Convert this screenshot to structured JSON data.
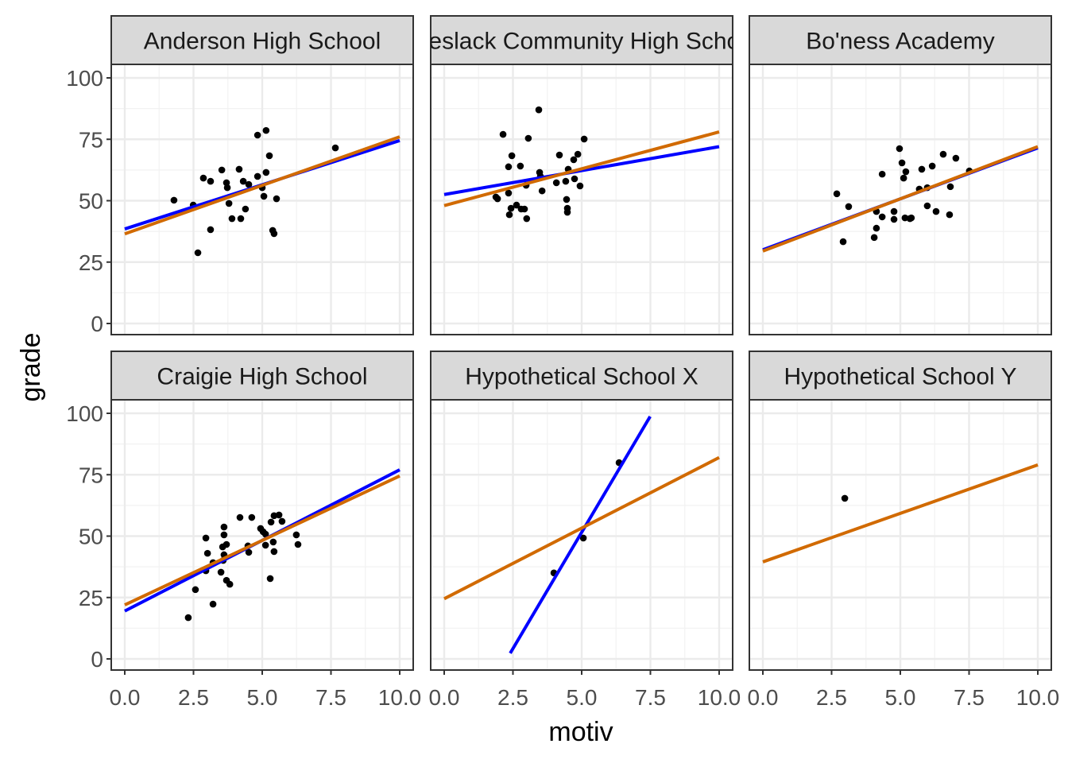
{
  "chart_data": {
    "type": "scatter",
    "layout": "facet grid, 2 rows x 3 columns, shared axes",
    "xlabel": "motiv",
    "ylabel": "grade",
    "xlim": [
      0,
      10
    ],
    "ylim": [
      0,
      100
    ],
    "x_ticks": [
      "0.0",
      "2.5",
      "5.0",
      "7.5",
      "10.0"
    ],
    "y_ticks": [
      "0",
      "25",
      "50",
      "75",
      "100"
    ],
    "grid": true,
    "colors": {
      "points": "#000000",
      "blue_line": "#0000ff",
      "orange_line": "#d16a00",
      "strip": "#d9d9d9",
      "border": "#333333"
    },
    "facets": [
      {
        "title": "Anderson High School",
        "points": [
          [
            1.79,
            50.2
          ],
          [
            2.49,
            48.2
          ],
          [
            2.66,
            28.8
          ],
          [
            2.86,
            59.2
          ],
          [
            3.12,
            57.9
          ],
          [
            3.12,
            38.2
          ],
          [
            3.53,
            62.5
          ],
          [
            3.7,
            57.3
          ],
          [
            3.73,
            55.3
          ],
          [
            3.79,
            48.9
          ],
          [
            3.9,
            42.7
          ],
          [
            4.22,
            42.7
          ],
          [
            4.16,
            62.8
          ],
          [
            4.31,
            57.9
          ],
          [
            4.39,
            46.6
          ],
          [
            4.51,
            56.6
          ],
          [
            4.83,
            76.7
          ],
          [
            4.83,
            59.9
          ],
          [
            5.0,
            55.3
          ],
          [
            5.06,
            51.8
          ],
          [
            5.14,
            61.5
          ],
          [
            5.14,
            78.6
          ],
          [
            5.26,
            68.3
          ],
          [
            5.38,
            37.9
          ],
          [
            5.43,
            36.6
          ],
          [
            5.52,
            50.8
          ],
          [
            7.66,
            71.5
          ]
        ],
        "blue_line": [
          [
            0,
            38.5
          ],
          [
            10,
            74.5
          ]
        ],
        "orange_line": [
          [
            0,
            36.5
          ],
          [
            10,
            76
          ]
        ]
      },
      {
        "title": "Breslack Community High School",
        "points": [
          [
            1.88,
            51.5
          ],
          [
            1.94,
            50.8
          ],
          [
            2.14,
            77
          ],
          [
            2.34,
            63.8
          ],
          [
            2.34,
            53.1
          ],
          [
            2.37,
            44.3
          ],
          [
            2.43,
            46.9
          ],
          [
            2.46,
            68.3
          ],
          [
            2.63,
            48.2
          ],
          [
            2.77,
            64.1
          ],
          [
            2.8,
            46.6
          ],
          [
            2.92,
            46.6
          ],
          [
            2.98,
            56.3
          ],
          [
            3.0,
            42.7
          ],
          [
            3.06,
            75.4
          ],
          [
            3.44,
            87
          ],
          [
            3.47,
            61.5
          ],
          [
            3.5,
            59.9
          ],
          [
            3.56,
            54
          ],
          [
            4.19,
            68.6
          ],
          [
            4.08,
            57.3
          ],
          [
            4.42,
            57.9
          ],
          [
            4.48,
            46.9
          ],
          [
            4.45,
            50.5
          ],
          [
            4.48,
            45.3
          ],
          [
            4.51,
            62.8
          ],
          [
            4.71,
            66.7
          ],
          [
            4.74,
            58.9
          ],
          [
            4.86,
            68.9
          ],
          [
            4.94,
            56
          ],
          [
            5.09,
            75.1
          ]
        ],
        "blue_line": [
          [
            0,
            52.5
          ],
          [
            10,
            72
          ]
        ],
        "orange_line": [
          [
            0,
            48
          ],
          [
            10,
            78
          ]
        ]
      },
      {
        "title": "Bo'ness Academy",
        "points": [
          [
            2.69,
            52.8
          ],
          [
            2.92,
            33.3
          ],
          [
            3.12,
            47.6
          ],
          [
            4.05,
            35
          ],
          [
            4.13,
            38.8
          ],
          [
            4.13,
            45.6
          ],
          [
            4.34,
            43.4
          ],
          [
            4.34,
            60.8
          ],
          [
            4.77,
            45.6
          ],
          [
            4.77,
            42.4
          ],
          [
            4.97,
            71.2
          ],
          [
            5.06,
            65.4
          ],
          [
            5.12,
            59.2
          ],
          [
            5.17,
            43
          ],
          [
            5.2,
            61.8
          ],
          [
            5.35,
            42.7
          ],
          [
            5.4,
            43
          ],
          [
            5.69,
            54.7
          ],
          [
            5.78,
            62.8
          ],
          [
            5.98,
            55.3
          ],
          [
            5.98,
            47.9
          ],
          [
            6.16,
            64.1
          ],
          [
            6.3,
            45.6
          ],
          [
            6.56,
            68.9
          ],
          [
            6.82,
            55.7
          ],
          [
            6.79,
            44.3
          ],
          [
            7.02,
            67.3
          ],
          [
            7.51,
            62.1
          ]
        ],
        "blue_line": [
          [
            0,
            30
          ],
          [
            10,
            71.5
          ]
        ],
        "orange_line": [
          [
            0,
            29.5
          ],
          [
            10,
            72
          ]
        ]
      },
      {
        "title": "Craigie High School",
        "points": [
          [
            2.31,
            16.8
          ],
          [
            2.57,
            28.2
          ],
          [
            2.95,
            49.2
          ],
          [
            3.01,
            43
          ],
          [
            2.95,
            35.9
          ],
          [
            3.21,
            22.3
          ],
          [
            3.21,
            39.2
          ],
          [
            3.5,
            35.3
          ],
          [
            3.61,
            42.4
          ],
          [
            3.61,
            53.7
          ],
          [
            3.61,
            50.5
          ],
          [
            3.56,
            45.6
          ],
          [
            3.58,
            40.1
          ],
          [
            3.7,
            32
          ],
          [
            3.82,
            30.4
          ],
          [
            3.7,
            46.6
          ],
          [
            4.19,
            57.6
          ],
          [
            4.48,
            46
          ],
          [
            4.51,
            43.4
          ],
          [
            4.62,
            57.6
          ],
          [
            4.94,
            53.1
          ],
          [
            5.03,
            51.8
          ],
          [
            5.12,
            50.8
          ],
          [
            5.12,
            46.3
          ],
          [
            5.32,
            55.7
          ],
          [
            5.29,
            32.7
          ],
          [
            5.4,
            47.6
          ],
          [
            5.43,
            43.7
          ],
          [
            5.43,
            58.3
          ],
          [
            5.61,
            58.6
          ],
          [
            5.72,
            56
          ],
          [
            6.24,
            50.5
          ],
          [
            6.3,
            46.6
          ]
        ],
        "blue_line": [
          [
            0,
            19.5
          ],
          [
            10,
            77
          ]
        ],
        "orange_line": [
          [
            0,
            22
          ],
          [
            10,
            74.5
          ]
        ]
      },
      {
        "title": "Hypothetical School X",
        "points": [
          [
            3.99,
            35
          ],
          [
            5.06,
            49.2
          ],
          [
            6.36,
            79.9
          ]
        ],
        "blue_line": [
          [
            2.4,
            2.3
          ],
          [
            7.49,
            98.7
          ]
        ],
        "orange_line": [
          [
            0,
            24.5
          ],
          [
            10,
            82
          ]
        ]
      },
      {
        "title": "Hypothetical School Y",
        "points": [
          [
            2.98,
            65.4
          ]
        ],
        "blue_line": null,
        "orange_line": [
          [
            0,
            39.5
          ],
          [
            10,
            79
          ]
        ]
      }
    ]
  }
}
